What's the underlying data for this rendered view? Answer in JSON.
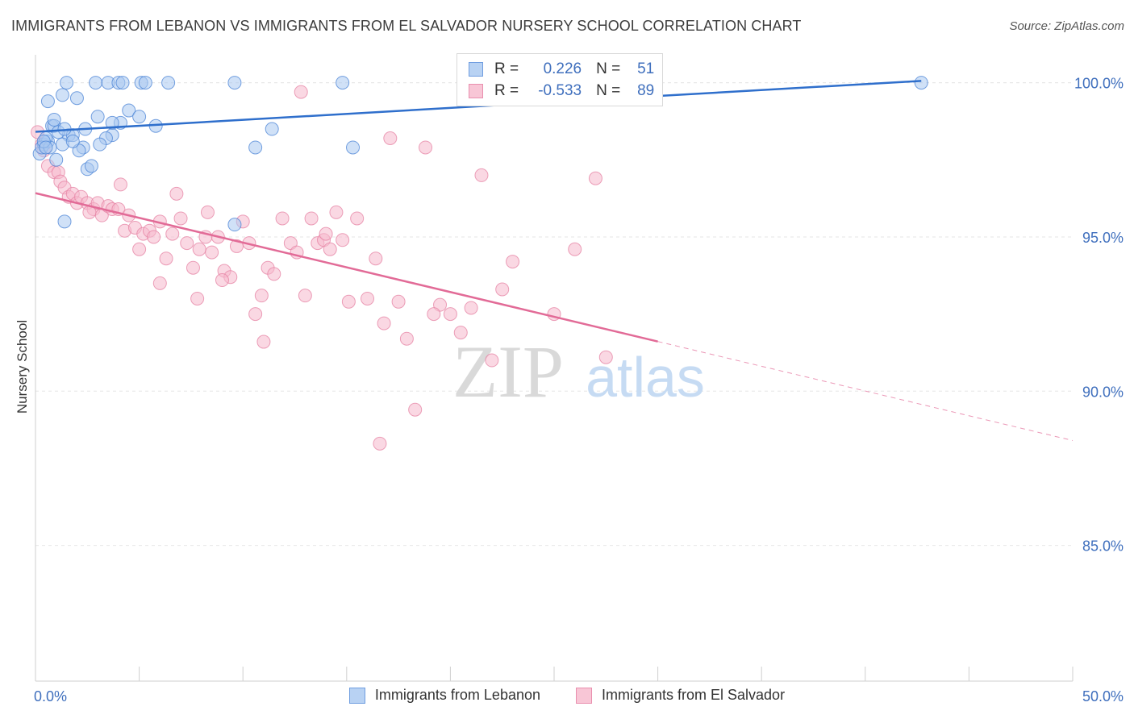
{
  "header": {
    "title": "IMMIGRANTS FROM LEBANON VS IMMIGRANTS FROM EL SALVADOR NURSERY SCHOOL CORRELATION CHART",
    "source": "Source: ZipAtlas.com"
  },
  "watermark": {
    "zip": "ZIP",
    "atlas": "atlas"
  },
  "legend": {
    "r_label": "R =",
    "n_label": "N =",
    "rows": [
      {
        "r": "0.226",
        "n": "51"
      },
      {
        "r": "-0.533",
        "n": "89"
      }
    ]
  },
  "colors": {
    "lebanon_fill": "#a9c8f0",
    "lebanon_stroke": "#4a83d6",
    "lebanon_line": "#2f6fcc",
    "salvador_fill": "#f5b8cc",
    "salvador_stroke": "#e681a3",
    "salvador_line": "#e26b97",
    "tick_label": "#3f6fbd",
    "grid": "#e6e6e6"
  },
  "chart_data": {
    "type": "scatter",
    "title": "IMMIGRANTS FROM LEBANON VS IMMIGRANTS FROM EL SALVADOR NURSERY SCHOOL CORRELATION CHART",
    "xlabel": "",
    "ylabel": "Nursery School",
    "xlim": [
      0,
      50
    ],
    "ylim": [
      80.6,
      100.8
    ],
    "x_tick_labels": [
      "0.0%",
      "50.0%"
    ],
    "y_ticks": [
      85,
      90,
      95,
      100
    ],
    "y_tick_labels": [
      "85.0%",
      "90.0%",
      "95.0%",
      "100.0%"
    ],
    "grid": true,
    "legend_placement": "bottom-center",
    "series": [
      {
        "name": "Immigrants from Lebanon",
        "r": 0.226,
        "n": 51,
        "trend": {
          "x": [
            0,
            42.7
          ],
          "y": [
            98.41,
            100.06
          ]
        },
        "points": [
          [
            1.5,
            100
          ],
          [
            2.9,
            100
          ],
          [
            3.5,
            100
          ],
          [
            4.0,
            100
          ],
          [
            4.2,
            100
          ],
          [
            5.1,
            100
          ],
          [
            5.3,
            100
          ],
          [
            6.4,
            100
          ],
          [
            9.6,
            100
          ],
          [
            14.8,
            100
          ],
          [
            42.7,
            100
          ],
          [
            0.6,
            99.4
          ],
          [
            1.3,
            99.6
          ],
          [
            2.0,
            99.5
          ],
          [
            3.0,
            98.9
          ],
          [
            4.5,
            99.1
          ],
          [
            0.8,
            98.6
          ],
          [
            1.6,
            98.3
          ],
          [
            3.7,
            98.3
          ],
          [
            2.4,
            98.5
          ],
          [
            0.4,
            98.0
          ],
          [
            2.3,
            97.9
          ],
          [
            0.2,
            97.7
          ],
          [
            1.0,
            97.5
          ],
          [
            2.5,
            97.2
          ],
          [
            0.6,
            98.1
          ],
          [
            1.3,
            98.0
          ],
          [
            0.9,
            98.6
          ],
          [
            1.8,
            98.3
          ],
          [
            0.5,
            98.2
          ],
          [
            0.3,
            97.9
          ],
          [
            3.4,
            98.2
          ],
          [
            4.1,
            98.7
          ],
          [
            5.0,
            98.9
          ],
          [
            2.1,
            97.8
          ],
          [
            0.7,
            97.9
          ],
          [
            5.8,
            98.6
          ],
          [
            10.6,
            97.9
          ],
          [
            15.3,
            97.9
          ],
          [
            11.4,
            98.5
          ],
          [
            3.7,
            98.7
          ],
          [
            1.8,
            98.1
          ],
          [
            0.4,
            98.1
          ],
          [
            1.1,
            98.4
          ],
          [
            0.5,
            97.9
          ],
          [
            2.7,
            97.3
          ],
          [
            3.1,
            98.0
          ],
          [
            1.4,
            98.5
          ],
          [
            0.9,
            98.8
          ],
          [
            9.6,
            95.4
          ],
          [
            1.4,
            95.5
          ]
        ]
      },
      {
        "name": "Immigrants from El Salvador",
        "r": -0.533,
        "n": 89,
        "trend": {
          "x": [
            0,
            30
          ],
          "y": [
            96.42,
            91.61
          ]
        },
        "trend_dashed": {
          "x": [
            30,
            50
          ],
          "y": [
            91.61,
            88.4
          ]
        },
        "points": [
          [
            0.1,
            98.4
          ],
          [
            0.3,
            98.0
          ],
          [
            0.4,
            97.8
          ],
          [
            0.6,
            97.3
          ],
          [
            0.9,
            97.1
          ],
          [
            1.1,
            97.1
          ],
          [
            1.2,
            96.8
          ],
          [
            1.4,
            96.6
          ],
          [
            1.6,
            96.3
          ],
          [
            1.8,
            96.4
          ],
          [
            2.0,
            96.1
          ],
          [
            2.2,
            96.3
          ],
          [
            2.5,
            96.1
          ],
          [
            2.8,
            95.9
          ],
          [
            3.0,
            96.1
          ],
          [
            3.2,
            95.7
          ],
          [
            3.5,
            96.0
          ],
          [
            3.7,
            95.9
          ],
          [
            4.0,
            95.9
          ],
          [
            4.3,
            95.2
          ],
          [
            4.5,
            95.7
          ],
          [
            4.8,
            95.3
          ],
          [
            5.0,
            94.6
          ],
          [
            5.2,
            95.1
          ],
          [
            5.5,
            95.2
          ],
          [
            5.7,
            95.0
          ],
          [
            6.0,
            95.5
          ],
          [
            6.3,
            94.3
          ],
          [
            6.6,
            95.1
          ],
          [
            7.0,
            95.6
          ],
          [
            7.3,
            94.8
          ],
          [
            7.6,
            94.0
          ],
          [
            7.9,
            94.6
          ],
          [
            8.2,
            95.0
          ],
          [
            8.5,
            94.5
          ],
          [
            8.8,
            95.0
          ],
          [
            9.1,
            93.9
          ],
          [
            9.4,
            93.7
          ],
          [
            9.7,
            94.7
          ],
          [
            10.0,
            95.5
          ],
          [
            10.3,
            94.8
          ],
          [
            10.6,
            92.5
          ],
          [
            10.9,
            93.1
          ],
          [
            11.2,
            94.0
          ],
          [
            11.5,
            93.8
          ],
          [
            11.9,
            95.6
          ],
          [
            12.3,
            94.8
          ],
          [
            12.6,
            94.5
          ],
          [
            13.0,
            93.1
          ],
          [
            13.3,
            95.6
          ],
          [
            13.6,
            94.8
          ],
          [
            13.9,
            94.9
          ],
          [
            14.2,
            94.6
          ],
          [
            14.5,
            95.8
          ],
          [
            14.8,
            94.9
          ],
          [
            15.1,
            92.9
          ],
          [
            15.5,
            95.6
          ],
          [
            16.0,
            93.0
          ],
          [
            16.4,
            94.3
          ],
          [
            16.8,
            92.2
          ],
          [
            17.1,
            98.2
          ],
          [
            17.5,
            92.9
          ],
          [
            17.9,
            91.7
          ],
          [
            18.3,
            89.4
          ],
          [
            18.8,
            97.9
          ],
          [
            19.5,
            92.8
          ],
          [
            20.0,
            92.5
          ],
          [
            20.5,
            91.9
          ],
          [
            21.0,
            92.7
          ],
          [
            21.5,
            97.0
          ],
          [
            22.0,
            91.0
          ],
          [
            22.5,
            93.3
          ],
          [
            23.0,
            94.2
          ],
          [
            25.0,
            92.5
          ],
          [
            26.0,
            94.6
          ],
          [
            27.0,
            96.9
          ],
          [
            27.5,
            91.1
          ],
          [
            12.8,
            99.7
          ],
          [
            7.8,
            93.0
          ],
          [
            6.8,
            96.4
          ],
          [
            8.3,
            95.8
          ],
          [
            4.1,
            96.7
          ],
          [
            2.6,
            95.8
          ],
          [
            11.0,
            91.6
          ],
          [
            16.6,
            88.3
          ],
          [
            19.2,
            92.5
          ],
          [
            9.0,
            93.6
          ],
          [
            14.0,
            95.1
          ],
          [
            6.0,
            93.5
          ]
        ]
      }
    ]
  },
  "bottom_legend": {
    "items": [
      {
        "label": "Immigrants from Lebanon"
      },
      {
        "label": "Immigrants from El Salvador"
      }
    ]
  }
}
